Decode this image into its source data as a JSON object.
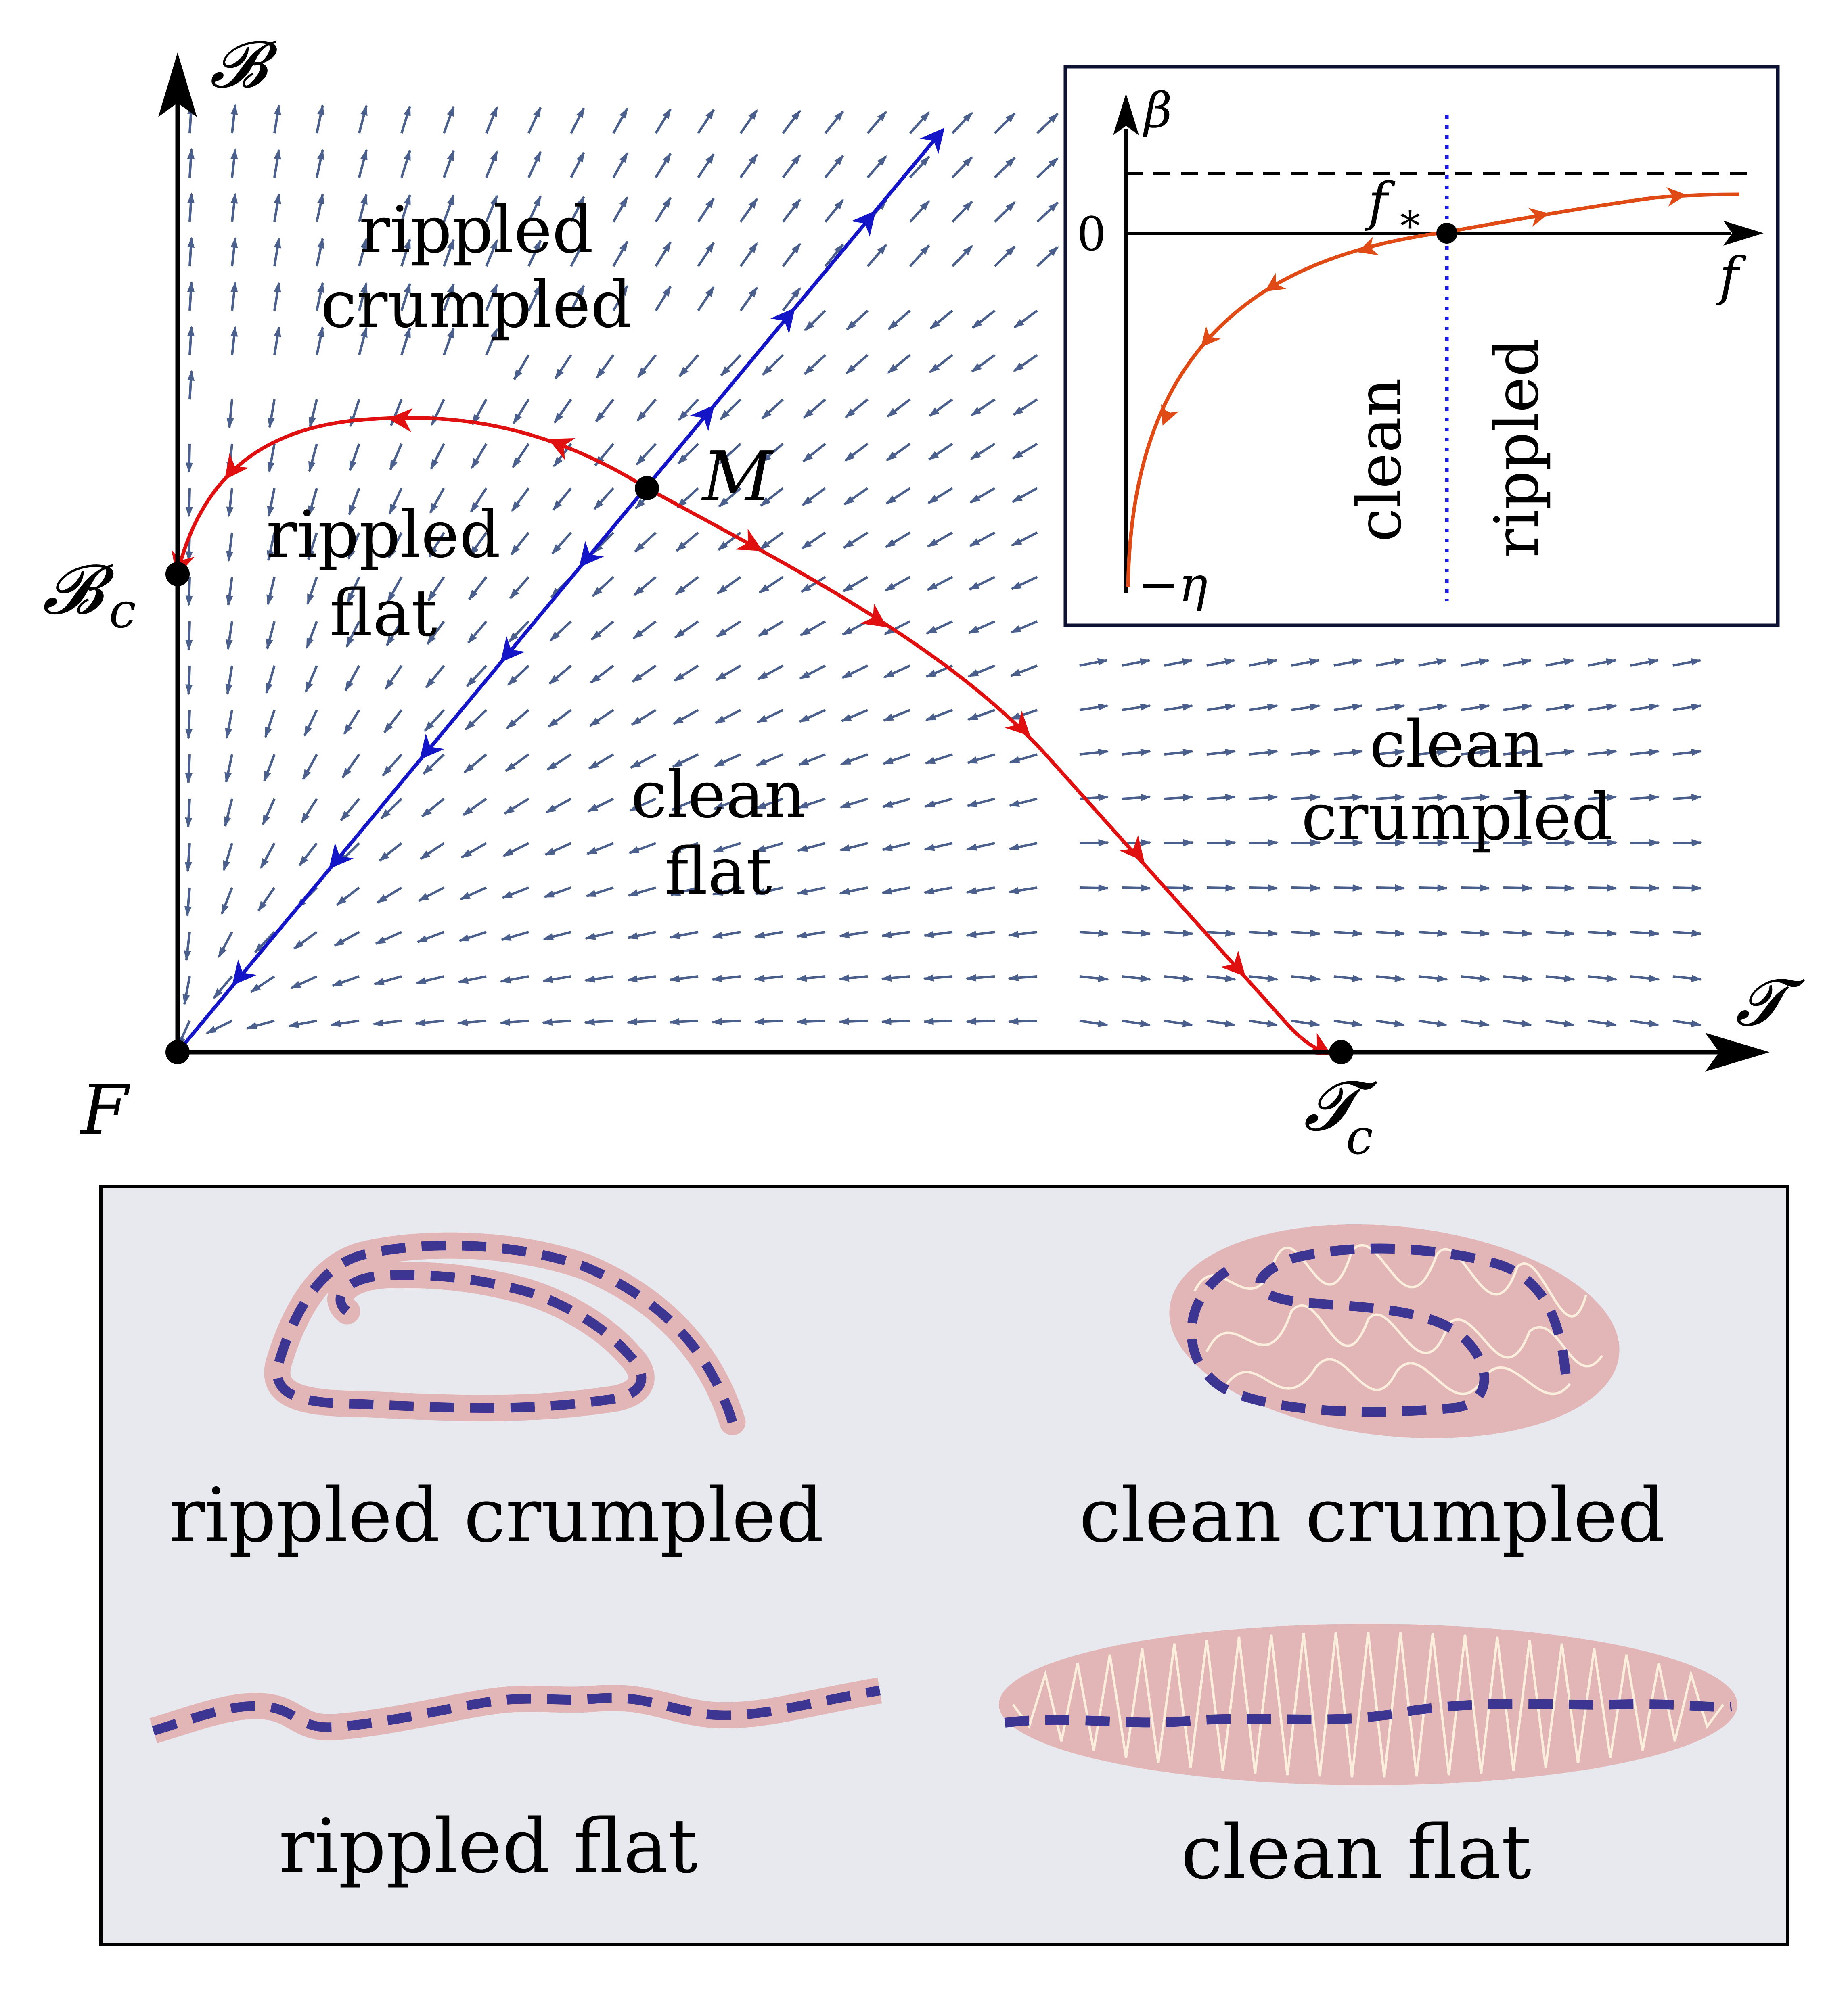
{
  "colors": {
    "streamline": "#4a5f8c",
    "separatrix_red": "#e01010",
    "separatrix_blue": "#1515c8",
    "inset_curve": "#e04a14",
    "inset_dotted": "#1a1ae0",
    "panel_bg": "#e8e9ef",
    "ribbon": "#e2b6b6",
    "ribbon_dash": "#3d3592",
    "wiggle": "#fbeedd"
  },
  "main": {
    "y_axis_label": "𝓑",
    "x_axis_label": "𝓣",
    "point_F": "F",
    "point_M": "M",
    "point_Bc_main": "𝓑",
    "point_Bc_sub": "c",
    "point_Tc_main": "𝓣",
    "point_Tc_sub": "c",
    "regions": {
      "rippled_crumpled": [
        "rippled",
        "crumpled"
      ],
      "rippled_flat": [
        "rippled",
        "flat"
      ],
      "clean_flat": [
        "clean",
        "flat"
      ],
      "clean_crumpled": [
        "clean",
        "crumpled"
      ]
    }
  },
  "inset": {
    "y_axis_label": "β",
    "x_axis_label": "f",
    "zero_tick": "0",
    "fixed_point_main": "f",
    "fixed_point_sub": "∗",
    "bottom_tick": "−η",
    "left_region": "clean",
    "right_region": "rippled"
  },
  "legend": {
    "rippled_crumpled": "rippled crumpled",
    "clean_crumpled": "clean crumpled",
    "rippled_flat": "rippled flat",
    "clean_flat": "clean flat"
  }
}
